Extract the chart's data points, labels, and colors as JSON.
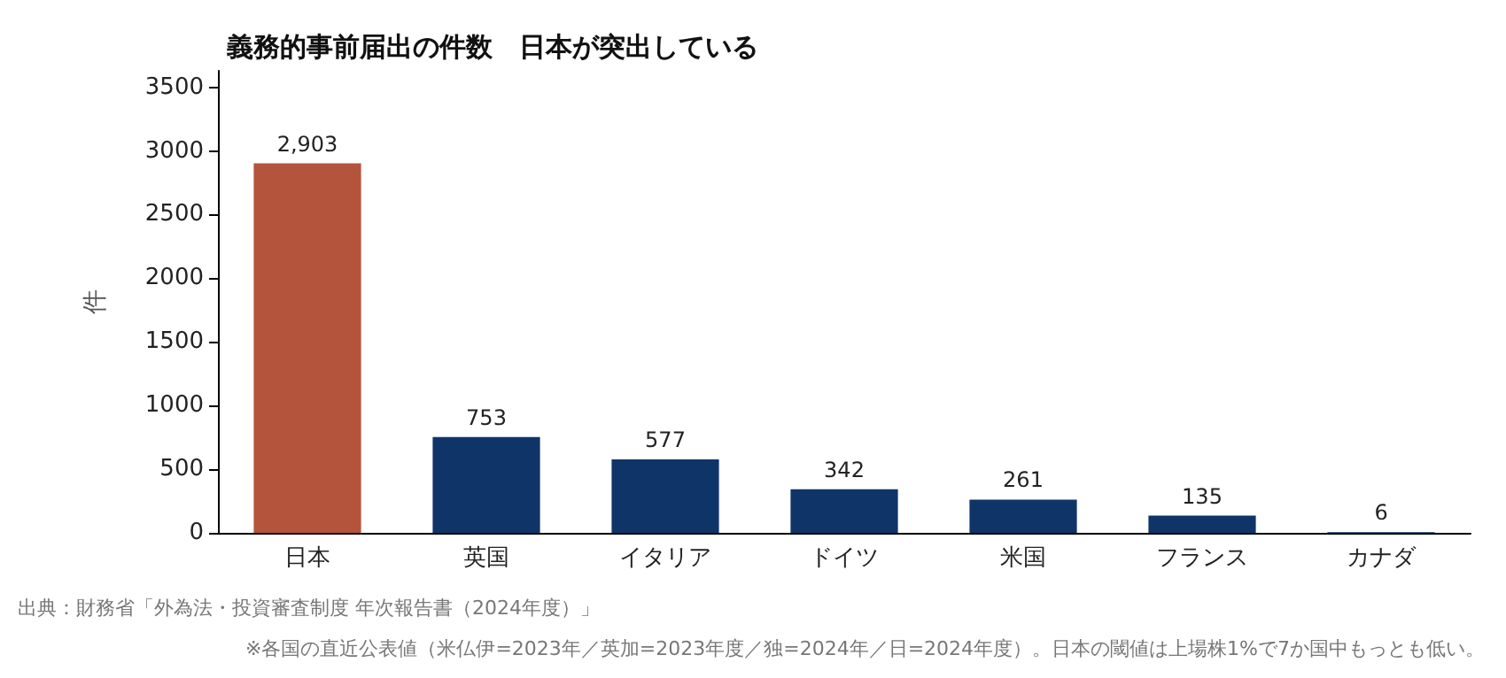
{
  "chart_data": {
    "type": "bar",
    "title": "義務的事前届出の件数　日本が突出している",
    "ylabel": "件",
    "categories": [
      "日本",
      "英国",
      "イタリア",
      "ドイツ",
      "米国",
      "フランス",
      "カナダ"
    ],
    "values": [
      2903,
      753,
      577,
      342,
      261,
      135,
      6
    ],
    "colors": [
      "#b5543c",
      "#0f3568",
      "#0f3568",
      "#0f3568",
      "#0f3568",
      "#0f3568",
      "#0f3568"
    ],
    "value_labels": [
      "2,903",
      "753",
      "577",
      "342",
      "261",
      "135",
      "6"
    ],
    "ylim": [
      0,
      3630
    ],
    "yticks": [
      0,
      500,
      1000,
      1500,
      2000,
      2500,
      3000,
      3500
    ],
    "grid": false,
    "annotations": [
      "出典：財務省「外為法・投資審査制度 年次報告書（2024年度）」",
      "※各国の直近公表値（米仏伊=2023年／英加=2023年度／独=2024年／日=2024年度）。日本の閾値は上場株1%で7か国中もっとも低い。"
    ]
  }
}
